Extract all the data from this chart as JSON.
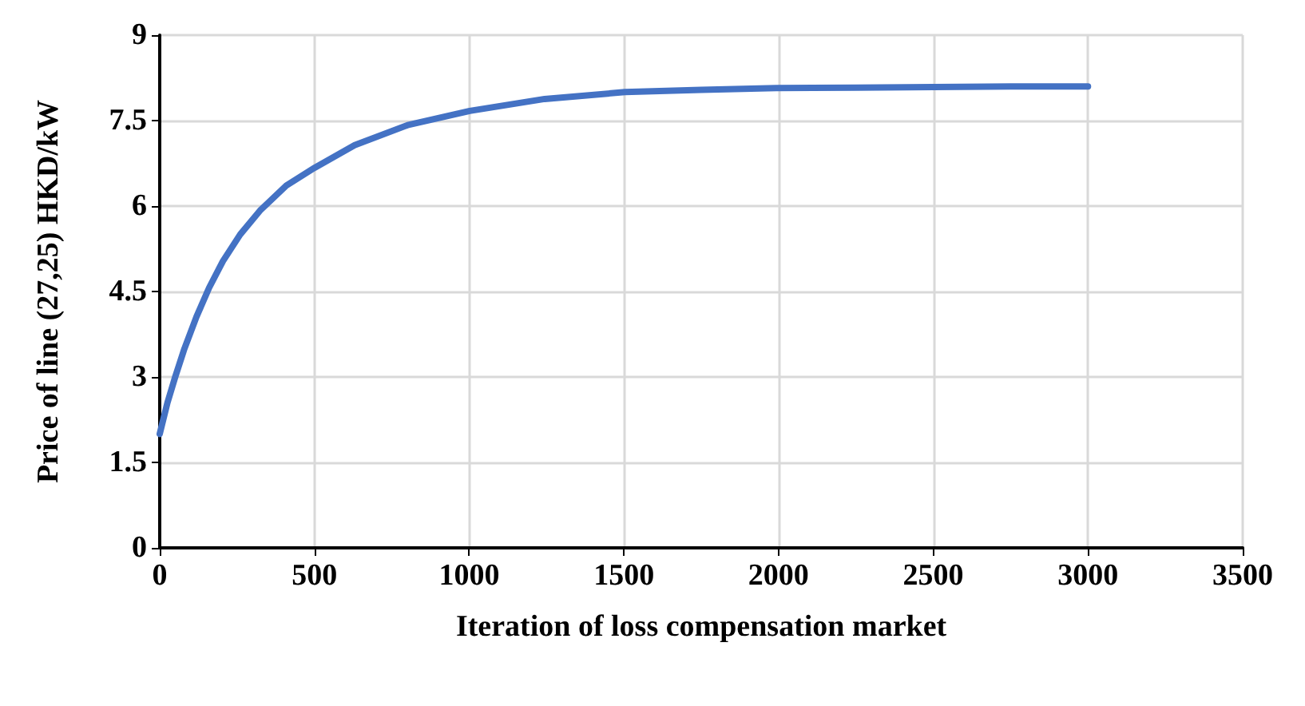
{
  "chart_data": {
    "type": "line",
    "xlabel": "Iteration of loss compensation market",
    "ylabel": "Price of line (27,25) HKD/kW",
    "x": [
      0,
      25,
      50,
      80,
      119,
      160,
      204,
      260,
      324,
      409,
      500,
      630,
      801,
      1002,
      1244,
      1503,
      1750,
      1993,
      2250,
      2500,
      2750,
      3000
    ],
    "series": [
      {
        "color": "#4472c4",
        "values": [
          2.0,
          2.55,
          3.0,
          3.5,
          4.06,
          4.57,
          5.03,
          5.5,
          5.92,
          6.36,
          6.67,
          7.07,
          7.42,
          7.67,
          7.88,
          8.0,
          8.04,
          8.07,
          8.08,
          8.09,
          8.1,
          8.1
        ]
      }
    ],
    "xlim": [
      0,
      3500
    ],
    "xticks": [
      0,
      500,
      1000,
      1500,
      2000,
      2500,
      3000,
      3500
    ],
    "ylim": [
      0,
      9
    ],
    "yticks": [
      0,
      1.5,
      3,
      4.5,
      6,
      7.5,
      9
    ],
    "grid": true,
    "marker": "none",
    "line_style": "solid"
  }
}
